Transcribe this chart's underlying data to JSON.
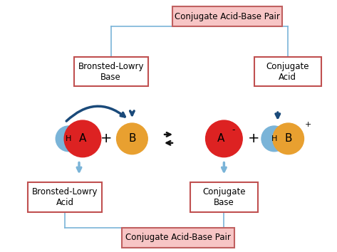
{
  "bg_color": "#ffffff",
  "title_top_text": "Conjugate Acid-Base Pair",
  "title_bottom_text": "Conjugate Acid-Base Pair",
  "title_box_color": "#f7c5c5",
  "title_box_border": "#c06060",
  "label_box_border": "#c05050",
  "label_box_fill": "#ffffff",
  "label_bl_base": "Bronsted-Lowry\nBase",
  "label_bl_acid": "Bronsted-Lowry\nAcid",
  "label_conj_acid": "Conjugate\nAcid",
  "label_conj_base": "Conjugate\nBase",
  "H_color": "#7ab4d8",
  "A_color": "#dd2222",
  "B_color": "#e8a030",
  "arrow_dark": "#1a4a7a",
  "arrow_light": "#7ab4d8",
  "eq_color": "#111111"
}
